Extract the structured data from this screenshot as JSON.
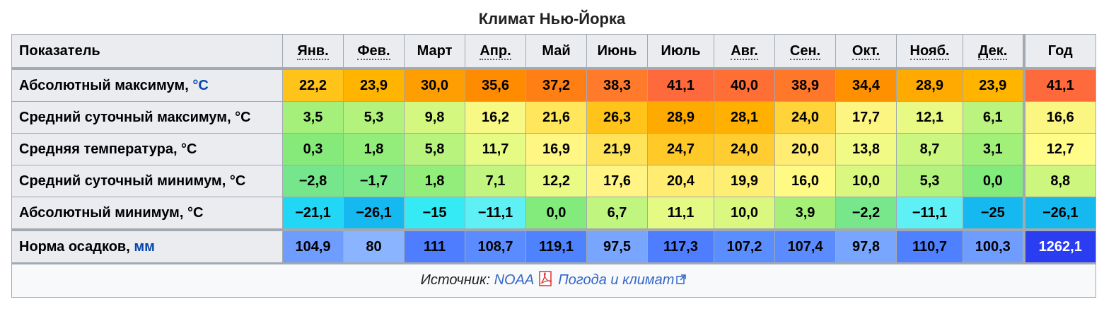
{
  "caption": "Климат Нью-Йорка",
  "header": {
    "first": "Показатель",
    "months": [
      "Янв.",
      "Фев.",
      "Март",
      "Апр.",
      "Май",
      "Июнь",
      "Июль",
      "Авг.",
      "Сен.",
      "Окт.",
      "Нояб.",
      "Дек."
    ],
    "abbr": [
      true,
      true,
      false,
      true,
      false,
      false,
      false,
      true,
      true,
      true,
      true,
      true
    ],
    "year": "Год"
  },
  "rows": [
    {
      "label": "Абсолютный максимум, ",
      "unit": "°C",
      "unit_link": true,
      "values": [
        "22,2",
        "23,9",
        "30,0",
        "35,6",
        "37,2",
        "38,3",
        "41,1",
        "40,0",
        "38,9",
        "34,4",
        "28,9",
        "23,9"
      ],
      "year": "41,1",
      "colors": [
        "#ffc31a",
        "#ffb400",
        "#ff9e00",
        "#ff8c00",
        "#ff7f14",
        "#ff7a2a",
        "#ff6a3d",
        "#ff6f35",
        "#ff7728",
        "#ff9100",
        "#ffaa00",
        "#ffb400"
      ],
      "year_color": "#ff6a3d"
    },
    {
      "label": "Средний суточный максимум, °C",
      "unit": "",
      "unit_link": false,
      "values": [
        "3,5",
        "5,3",
        "9,8",
        "16,2",
        "21,6",
        "26,3",
        "28,9",
        "28,1",
        "24,0",
        "17,7",
        "12,1",
        "6,1"
      ],
      "year": "16,6",
      "colors": [
        "#a4f07a",
        "#b3f37d",
        "#d4f87f",
        "#f8f884",
        "#ffe65a",
        "#ffc31a",
        "#ffaa00",
        "#ffb000",
        "#ffd43a",
        "#fdf582",
        "#e8fa84",
        "#baf37d"
      ],
      "year_color": "#fbf681"
    },
    {
      "label": "Средняя температура, °C",
      "unit": "",
      "unit_link": false,
      "values": [
        "0,3",
        "1,8",
        "5,8",
        "11,7",
        "16,9",
        "21,9",
        "24,7",
        "24,0",
        "20,0",
        "13,8",
        "8,7",
        "3,1"
      ],
      "year": "12,7",
      "colors": [
        "#85ea7a",
        "#93ed7a",
        "#b8f37d",
        "#e6fb84",
        "#fff684",
        "#ffe45a",
        "#ffc928",
        "#ffcd32",
        "#ffec70",
        "#f1fa84",
        "#cbf67f",
        "#a1f07a"
      ],
      "year_color": "#fffc8a"
    },
    {
      "label": "Средний суточный минимум, °C",
      "unit": "",
      "unit_link": false,
      "values": [
        "−2,8",
        "−1,7",
        "1,8",
        "7,1",
        "12,2",
        "17,6",
        "20,4",
        "19,9",
        "16,0",
        "10,0",
        "5,3",
        "0,0"
      ],
      "year": "8,8",
      "colors": [
        "#76e68c",
        "#7ce88a",
        "#93ed7a",
        "#c2f57f",
        "#e9fb84",
        "#fff484",
        "#ffec70",
        "#ffee74",
        "#fffa84",
        "#daf880",
        "#b3f37d",
        "#83ea7c"
      ],
      "year_color": "#cdf67f"
    },
    {
      "label": "Абсолютный минимум, °C",
      "unit": "",
      "unit_link": false,
      "values": [
        "−21,1",
        "−26,1",
        "−15",
        "−11,1",
        "0,0",
        "6,7",
        "11,1",
        "10,0",
        "3,9",
        "−2,2",
        "−11,1",
        "−25"
      ],
      "year": "−26,1",
      "colors": [
        "#22d6f5",
        "#16b8f0",
        "#36eaf5",
        "#5ef0f5",
        "#83ea7c",
        "#c0f57f",
        "#e4fa84",
        "#daf880",
        "#a6f07a",
        "#78e68b",
        "#5ef0f5",
        "#16b8f0"
      ],
      "year_color": "#16b8f0"
    }
  ],
  "precip": {
    "label": "Норма осадков, ",
    "unit": "мм",
    "values": [
      "104,9",
      "80",
      "111",
      "108,7",
      "119,1",
      "97,5",
      "117,3",
      "107,2",
      "107,4",
      "97,8",
      "110,7",
      "100,3"
    ],
    "year": "1262,1",
    "colors": [
      "#6e9cff",
      "#8ab4ff",
      "#4e7eff",
      "#5a8cff",
      "#4e82ff",
      "#78a6ff",
      "#4e7eff",
      "#5a8eff",
      "#5a8cff",
      "#78a6ff",
      "#4e80ff",
      "#6e9cff"
    ],
    "year_color": "#2b3df0"
  },
  "source": {
    "prefix": "Источник: ",
    "link1": "NOAA",
    "link2": "Погода и климат",
    "pdf_icon": "pdf-icon",
    "ext_icon": "external-link-icon"
  }
}
